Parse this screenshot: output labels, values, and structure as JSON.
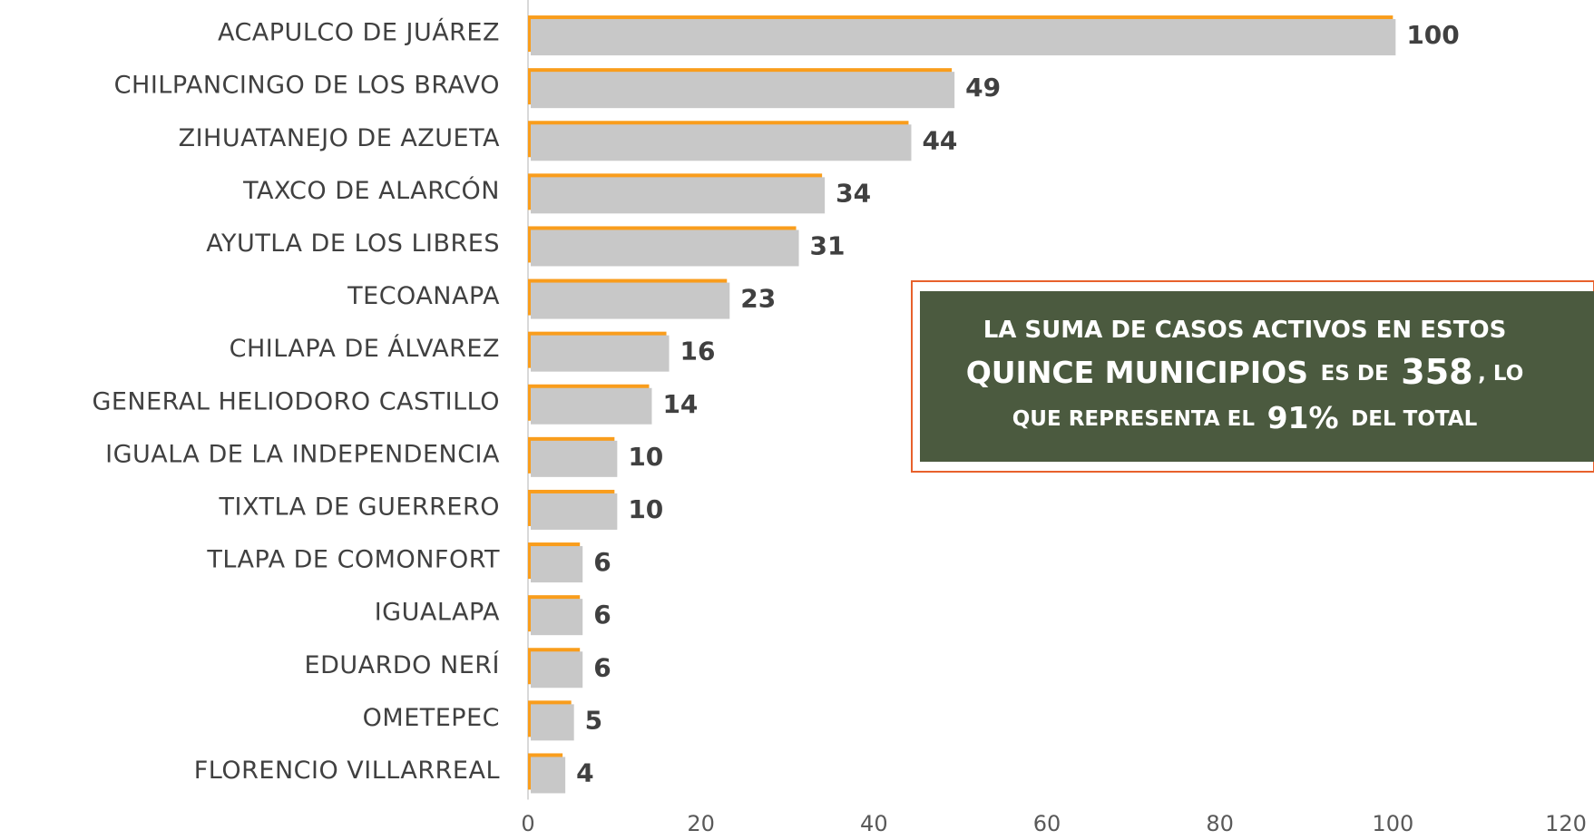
{
  "chart_data": {
    "type": "bar",
    "orientation": "horizontal",
    "categories": [
      "ACAPULCO DE JUÁREZ",
      "CHILPANCINGO DE LOS BRAVO",
      "ZIHUATANEJO DE AZUETA",
      "TAXCO DE ALARCÓN",
      "AYUTLA DE LOS LIBRES",
      "TECOANAPA",
      "CHILAPA DE ÁLVAREZ",
      "GENERAL HELIODORO CASTILLO",
      "IGUALA DE LA INDEPENDENCIA",
      "TIXTLA DE GUERRERO",
      "TLAPA DE COMONFORT",
      "IGUALAPA",
      "EDUARDO NERÍ",
      "OMETEPEC",
      "FLORENCIO VILLARREAL"
    ],
    "values": [
      100,
      49,
      44,
      34,
      31,
      23,
      16,
      14,
      10,
      10,
      6,
      6,
      6,
      5,
      4
    ],
    "color": "#f99d1c",
    "xlim": [
      0,
      120
    ],
    "xticks": [
      0,
      20,
      40,
      60,
      80,
      100,
      120
    ],
    "grid": false,
    "annotation": [
      [
        "LA SUMA DE CASOS ACTIVOS EN ESTOS"
      ],
      [
        "QUINCE MUNICIPIOS",
        "ES DE",
        "358",
        ", LO"
      ],
      [
        "QUE REPRESENTA EL",
        "91%",
        "DEL TOTAL"
      ]
    ]
  }
}
